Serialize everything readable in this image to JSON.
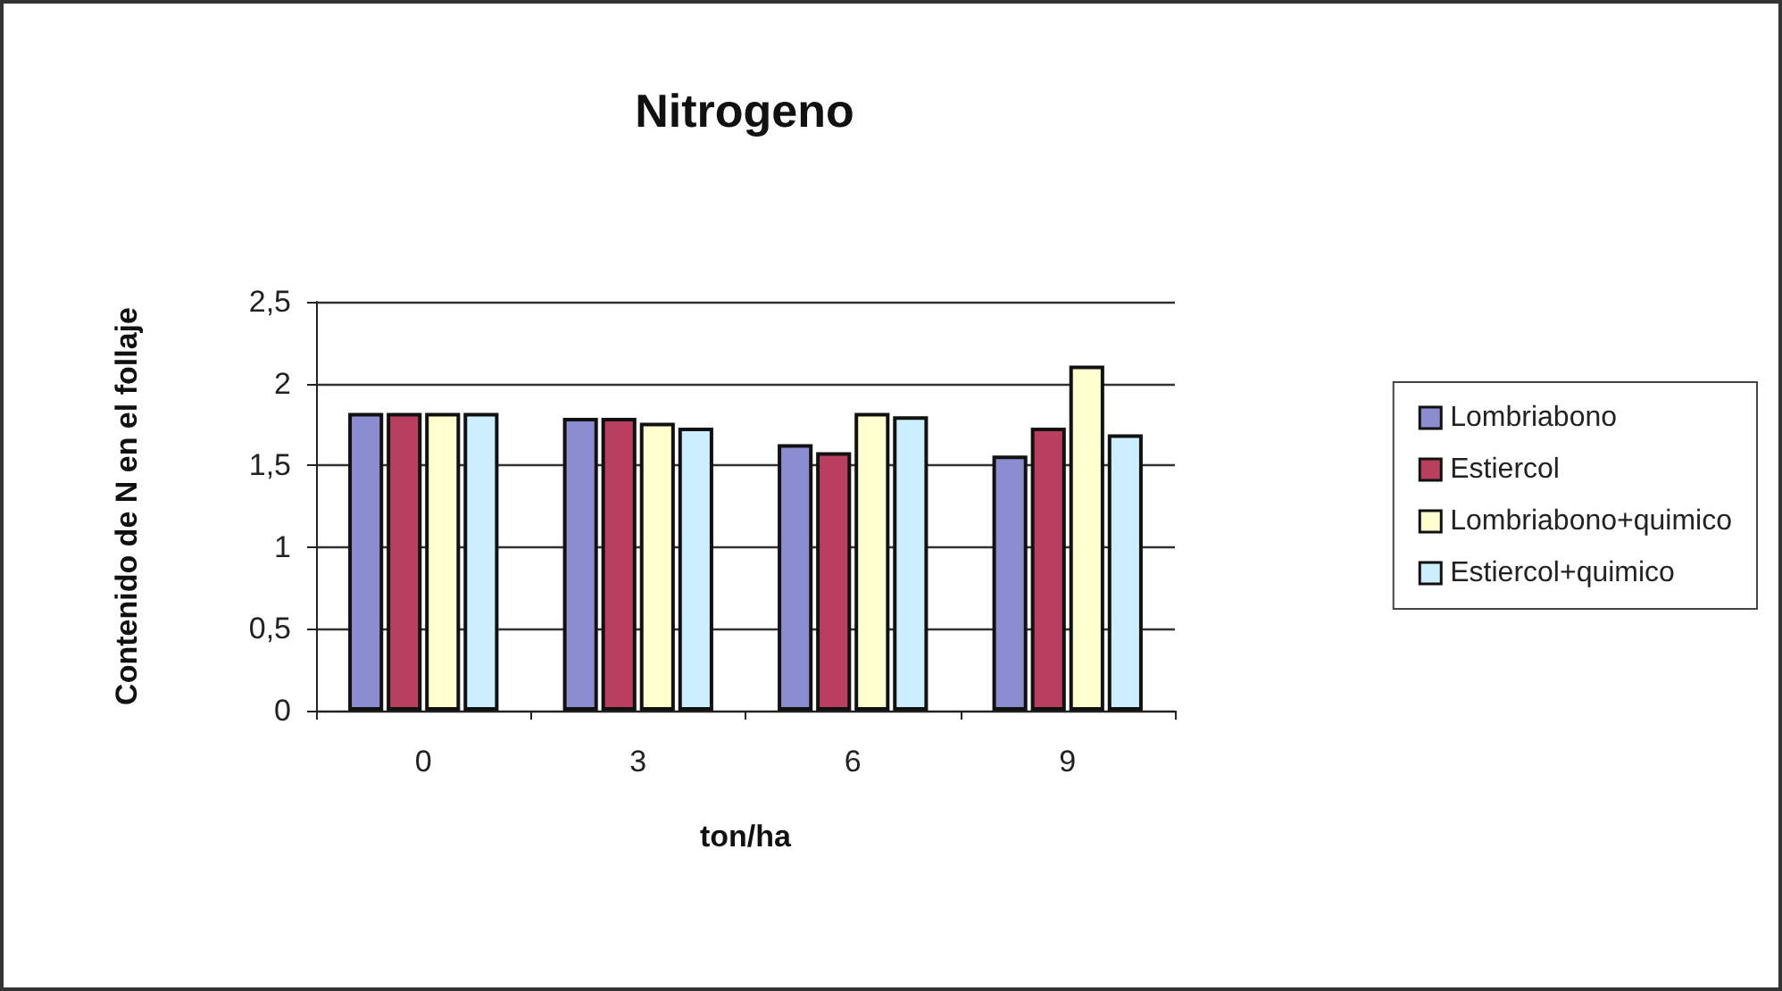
{
  "chart_data": {
    "type": "bar",
    "title": "Nitrogeno",
    "xlabel": "ton/ha",
    "ylabel": "Contenido de N en el follaje",
    "categories": [
      "0",
      "3",
      "6",
      "9"
    ],
    "series": [
      {
        "name": "Lombriabono",
        "color": "#8c8cd0",
        "values": [
          1.82,
          1.79,
          1.63,
          1.56
        ]
      },
      {
        "name": "Estiercol",
        "color": "#b8405e",
        "values": [
          1.82,
          1.79,
          1.58,
          1.73
        ]
      },
      {
        "name": "Lombriabono+quimico",
        "color": "#ffffd0",
        "values": [
          1.82,
          1.76,
          1.82,
          2.11
        ]
      },
      {
        "name": "Estiercol+quimico",
        "color": "#cceeff",
        "values": [
          1.82,
          1.73,
          1.8,
          1.69
        ]
      }
    ],
    "ylim": [
      0,
      2.5
    ],
    "yticks": [
      0,
      {
        "value": 0.5,
        "label": "0,5"
      },
      1,
      {
        "value": 1.5,
        "label": "1,5"
      },
      2,
      {
        "value": 2.5,
        "label": "2,5"
      }
    ],
    "grid": "y",
    "legend": "right"
  }
}
